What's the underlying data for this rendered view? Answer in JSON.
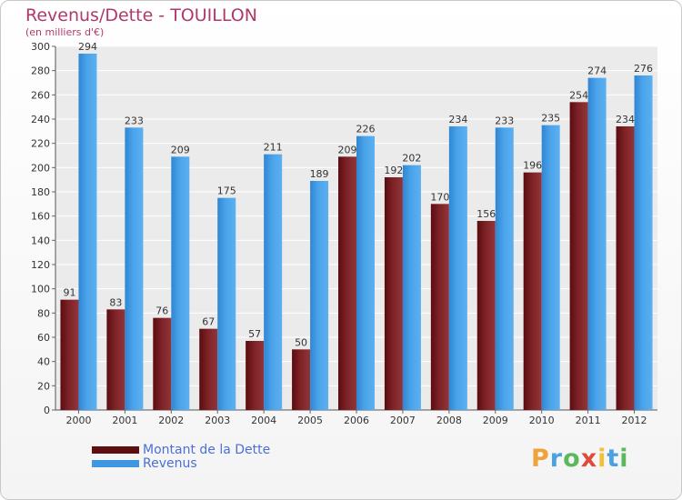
{
  "title": "Revenus/Dette - TOUILLON",
  "subtitle": "(en milliers d'€)",
  "chart_data": {
    "type": "bar",
    "categories": [
      "2000",
      "2001",
      "2002",
      "2003",
      "2004",
      "2005",
      "2006",
      "2007",
      "2008",
      "2009",
      "2010",
      "2011",
      "2012"
    ],
    "series": [
      {
        "name": "Montant de la Dette",
        "color": "#7a1e22",
        "values": [
          91,
          83,
          76,
          67,
          57,
          50,
          209,
          192,
          170,
          156,
          196,
          254,
          234
        ]
      },
      {
        "name": "Revenus",
        "color": "#3f97e2",
        "values": [
          294,
          233,
          209,
          175,
          211,
          189,
          226,
          202,
          234,
          233,
          235,
          274,
          276
        ]
      }
    ],
    "ylim": [
      0,
      300
    ],
    "yticks": [
      0,
      20,
      40,
      60,
      80,
      100,
      120,
      140,
      160,
      180,
      200,
      220,
      240,
      260,
      280,
      300
    ],
    "grid": true,
    "xlabel": "",
    "ylabel": ""
  },
  "legend": {
    "items": [
      {
        "label": "Montant de la Dette",
        "color": "#5e0d10"
      },
      {
        "label": "Revenus",
        "color": "#3f97e2"
      }
    ]
  },
  "logo": {
    "letters": [
      "P",
      "r",
      "o",
      "x",
      "i",
      "t",
      "i"
    ],
    "colors": [
      "#f0a23c",
      "#4aa3e0",
      "#5cb85c",
      "#e04a3c",
      "#f0c23c",
      "#4aa3e0",
      "#5cb85c"
    ]
  }
}
